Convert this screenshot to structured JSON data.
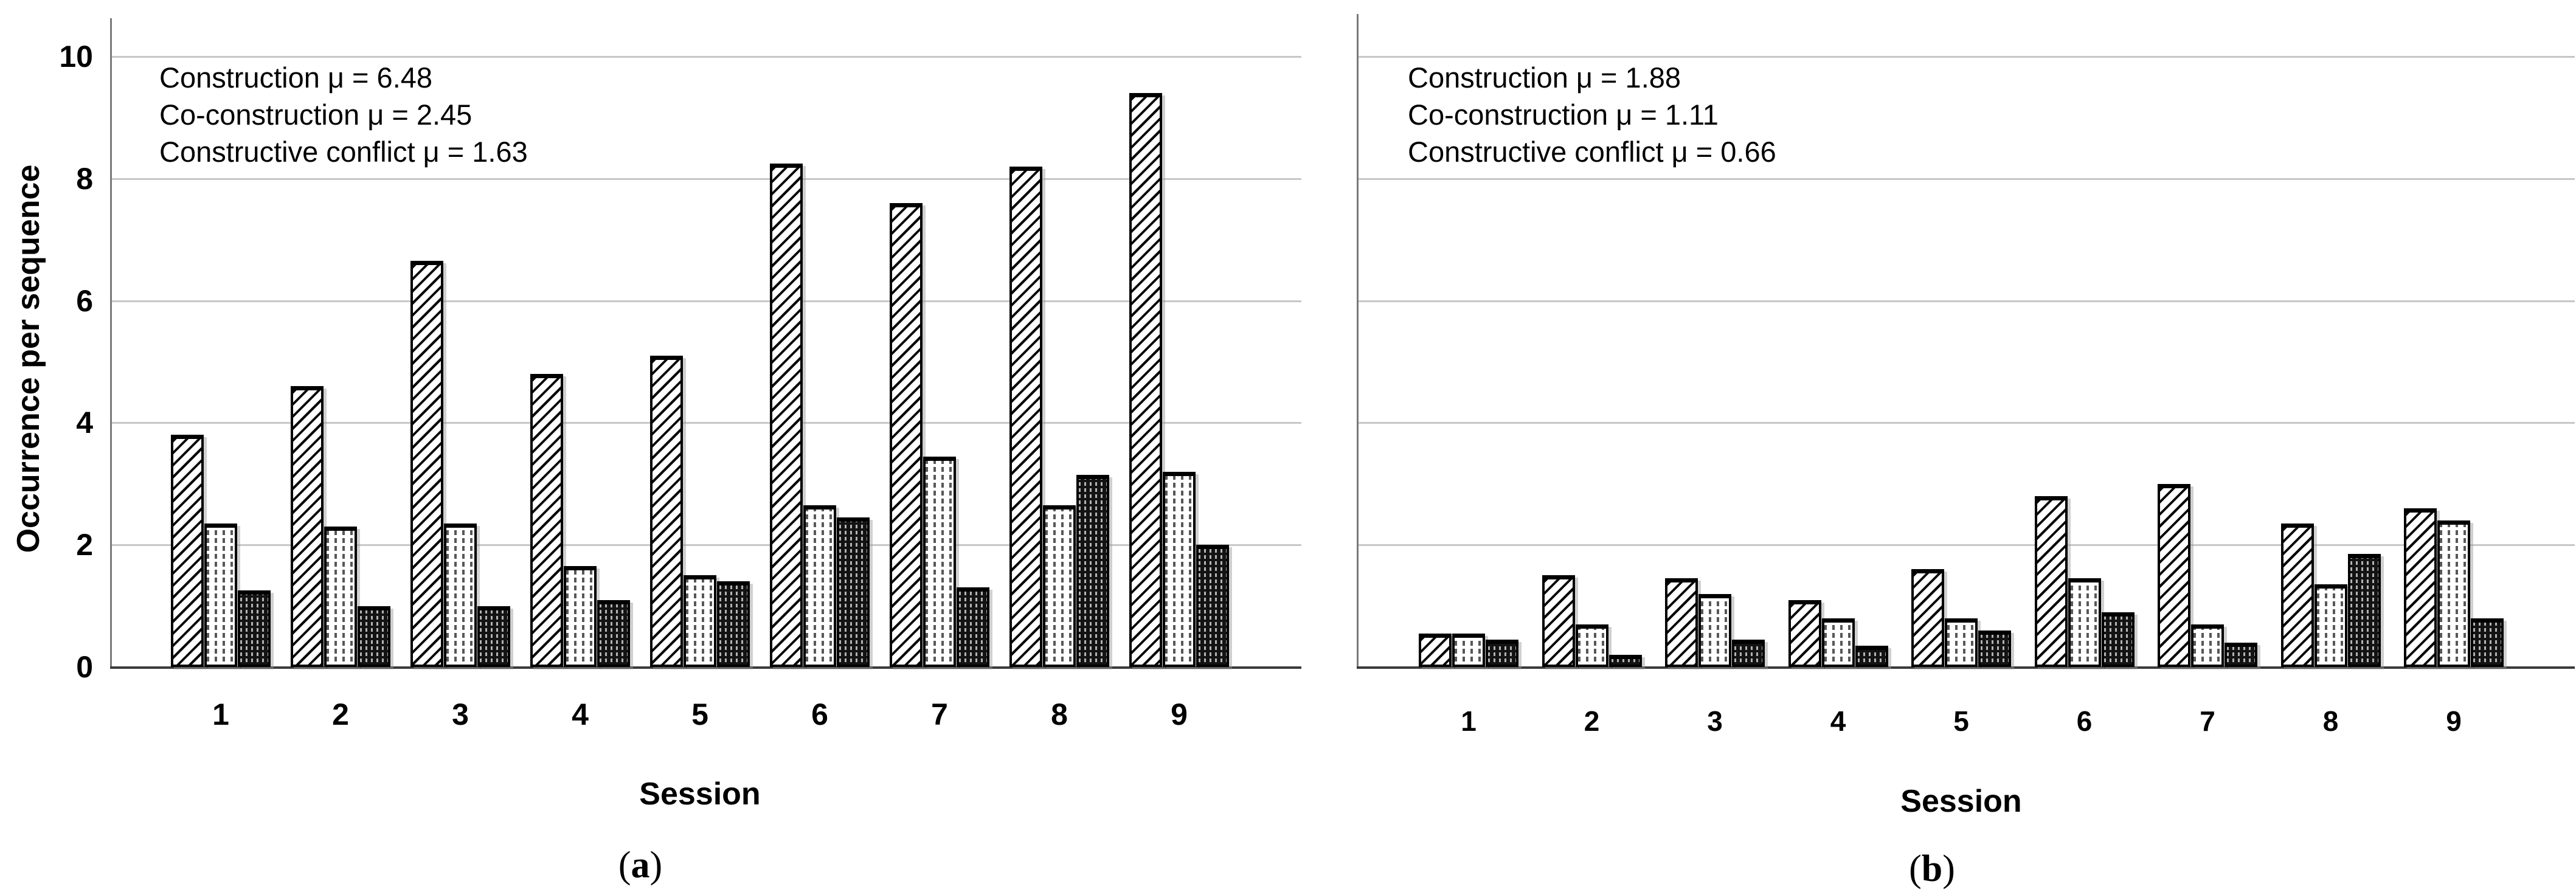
{
  "figure": {
    "description_colors": {
      "background": "#ffffff",
      "gridline": "#c7c7c7",
      "axis": "#3a3a3a",
      "bar_outline": "#000000",
      "conflict_fill": "#131313"
    }
  },
  "chart_data": [
    {
      "type": "bar",
      "panel": "a",
      "label_open": "(",
      "label_close": ")",
      "xlabel": "Session",
      "ylabel": "Occurrence per sequence",
      "categories": [
        "1",
        "2",
        "3",
        "4",
        "5",
        "6",
        "7",
        "8",
        "9"
      ],
      "ylim": [
        0,
        10.4
      ],
      "yticks": [
        0,
        2,
        4,
        6,
        8,
        10
      ],
      "grid": true,
      "show_ytick_labels": true,
      "legend_position": "none",
      "annotation_lines": [
        "Construction μ = 6.48",
        "Co-construction μ = 2.45",
        "Constructive conflict μ = 1.63"
      ],
      "series": [
        {
          "name": "Construction",
          "pattern": "diagonal-hatch",
          "mean": 6.48,
          "values": [
            3.8,
            4.6,
            6.65,
            4.8,
            5.1,
            8.25,
            7.6,
            8.2,
            9.4
          ]
        },
        {
          "name": "Co-construction",
          "pattern": "light-vertical-dash",
          "mean": 2.45,
          "values": [
            2.35,
            2.3,
            2.35,
            1.65,
            1.5,
            2.65,
            3.45,
            2.65,
            3.2
          ]
        },
        {
          "name": "Constructive conflict",
          "pattern": "dark-dotted",
          "mean": 1.63,
          "values": [
            1.25,
            1.0,
            1.0,
            1.1,
            1.4,
            2.45,
            1.3,
            3.15,
            2.0
          ]
        }
      ]
    },
    {
      "type": "bar",
      "panel": "b",
      "label_open": "(",
      "label_close": ")",
      "xlabel": "Session",
      "ylabel": "",
      "categories": [
        "1",
        "2",
        "3",
        "4",
        "5",
        "6",
        "7",
        "8",
        "9"
      ],
      "ylim": [
        0,
        10.4
      ],
      "yticks": [
        0,
        2,
        4,
        6,
        8,
        10
      ],
      "grid": true,
      "show_ytick_labels": false,
      "legend_position": "none",
      "annotation_lines": [
        "Construction μ = 1.88",
        "Co-construction μ = 1.11",
        "Constructive conflict μ = 0.66"
      ],
      "series": [
        {
          "name": "Construction",
          "pattern": "diagonal-hatch",
          "mean": 1.88,
          "values": [
            0.55,
            1.5,
            1.45,
            1.1,
            1.6,
            2.8,
            3.0,
            2.35,
            2.6
          ]
        },
        {
          "name": "Co-construction",
          "pattern": "light-vertical-dash",
          "mean": 1.11,
          "values": [
            0.55,
            0.7,
            1.2,
            0.8,
            0.8,
            1.45,
            0.7,
            1.35,
            2.4
          ]
        },
        {
          "name": "Constructive conflict",
          "pattern": "dark-dotted",
          "mean": 0.66,
          "values": [
            0.45,
            0.2,
            0.45,
            0.35,
            0.6,
            0.9,
            0.4,
            1.85,
            0.8
          ]
        }
      ]
    }
  ]
}
